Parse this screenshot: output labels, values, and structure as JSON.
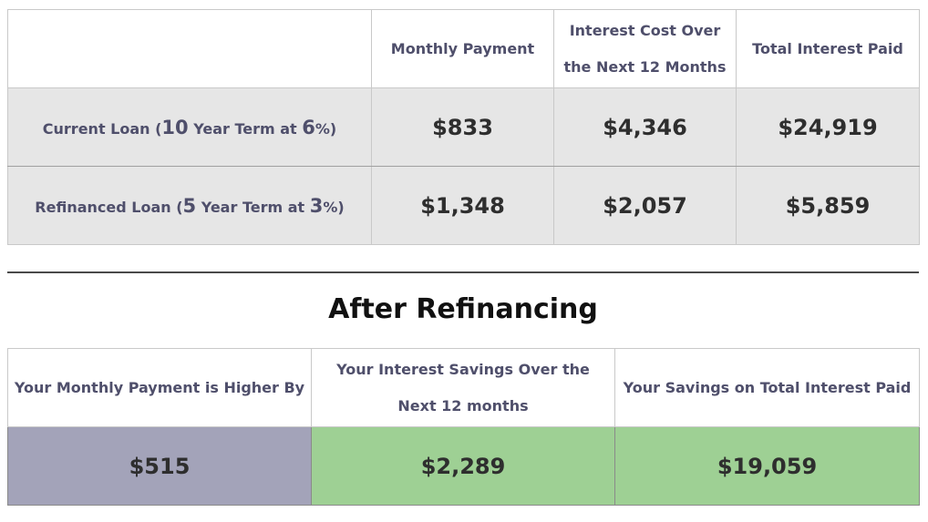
{
  "compare": {
    "headers": [
      "",
      "Monthly Payment",
      "Interest Cost Over the Next 12 Months",
      "Total Interest Paid"
    ],
    "rows": [
      {
        "label_pre": "Current Loan (",
        "term_years": "10",
        "label_mid": " Year Term at ",
        "rate": "6",
        "label_post": "%)",
        "monthly_payment": "$833",
        "interest_12_months": "$4,346",
        "total_interest": "$24,919"
      },
      {
        "label_pre": "Refinanced Loan (",
        "term_years": "5",
        "label_mid": " Year Term at ",
        "rate": "3",
        "label_post": "%)",
        "monthly_payment": "$1,348",
        "interest_12_months": "$2,057",
        "total_interest": "$5,859"
      }
    ]
  },
  "after": {
    "title": "After Refinancing",
    "headers": [
      "Your Monthly Payment is Higher By",
      "Your Interest Savings Over the Next 12 months",
      "Your Savings on Total Interest Paid"
    ],
    "values": [
      "$515",
      "$2,289",
      "$19,059"
    ],
    "colors": {
      "higher": "#a3a3b9",
      "saving": "#9ed094"
    }
  }
}
